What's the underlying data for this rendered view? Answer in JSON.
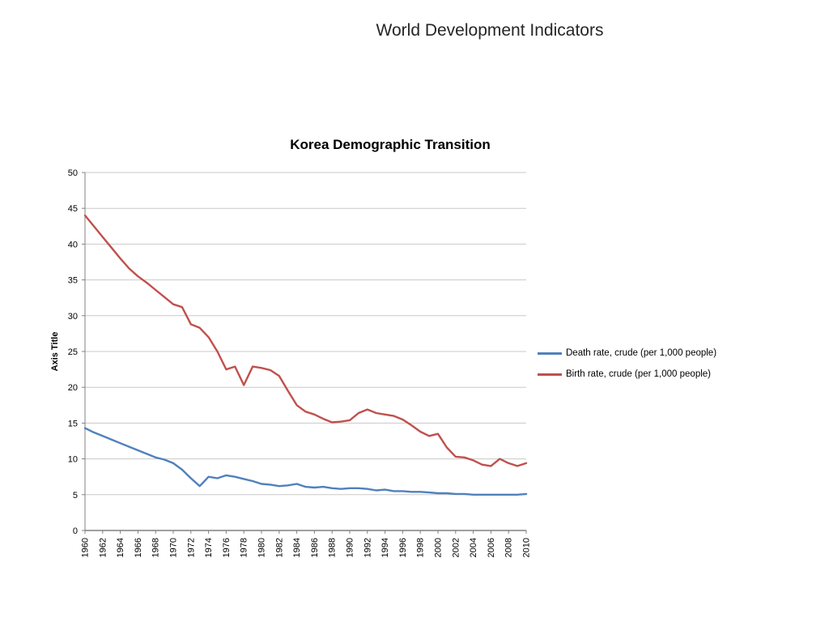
{
  "page": {
    "title": "World Development Indicators"
  },
  "chart_data": {
    "type": "line",
    "title": "Korea Demographic Transition",
    "xlabel": "",
    "ylabel": "Axis Title",
    "ylim": [
      0,
      50
    ],
    "ytick_step": 5,
    "xtick_step": 2,
    "grid": true,
    "legend_position": "right",
    "colors": {
      "grid": "#c9c9c9",
      "axis": "#808080",
      "tick_label": "#000000"
    },
    "x": [
      1960,
      1961,
      1962,
      1963,
      1964,
      1965,
      1966,
      1967,
      1968,
      1969,
      1970,
      1971,
      1972,
      1973,
      1974,
      1975,
      1976,
      1977,
      1978,
      1979,
      1980,
      1981,
      1982,
      1983,
      1984,
      1985,
      1986,
      1987,
      1988,
      1989,
      1990,
      1991,
      1992,
      1993,
      1994,
      1995,
      1996,
      1997,
      1998,
      1999,
      2000,
      2001,
      2002,
      2003,
      2004,
      2005,
      2006,
      2007,
      2008,
      2009,
      2010
    ],
    "series": [
      {
        "name": "Death rate, crude (per 1,000 people)",
        "color": "#4f81bd",
        "values": [
          14.3,
          13.7,
          13.2,
          12.7,
          12.2,
          11.7,
          11.2,
          10.7,
          10.2,
          9.9,
          9.4,
          8.5,
          7.3,
          6.2,
          7.5,
          7.3,
          7.7,
          7.5,
          7.2,
          6.9,
          6.5,
          6.4,
          6.2,
          6.3,
          6.5,
          6.1,
          6.0,
          6.1,
          5.9,
          5.8,
          5.9,
          5.9,
          5.8,
          5.6,
          5.7,
          5.5,
          5.5,
          5.4,
          5.4,
          5.3,
          5.2,
          5.2,
          5.1,
          5.1,
          5.0,
          5.0,
          5.0,
          5.0,
          5.0,
          5.0,
          5.1
        ]
      },
      {
        "name": "Birth rate, crude (per 1,000 people)",
        "color": "#c0504d",
        "values": [
          44.0,
          42.5,
          41.0,
          39.5,
          38.0,
          36.6,
          35.5,
          34.6,
          33.6,
          32.6,
          31.6,
          31.2,
          28.8,
          28.3,
          27.0,
          25.0,
          22.5,
          22.9,
          20.3,
          22.9,
          22.7,
          22.4,
          21.6,
          19.5,
          17.5,
          16.6,
          16.2,
          15.6,
          15.1,
          15.2,
          15.4,
          16.4,
          16.9,
          16.4,
          16.2,
          16.0,
          15.5,
          14.7,
          13.8,
          13.2,
          13.5,
          11.6,
          10.3,
          10.2,
          9.8,
          9.2,
          9.0,
          10.0,
          9.4,
          9.0,
          9.4
        ]
      }
    ]
  }
}
